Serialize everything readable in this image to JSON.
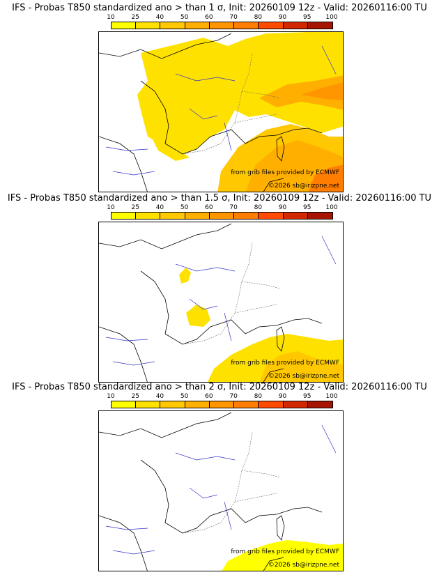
{
  "legend": {
    "ticks": [
      "10",
      "25",
      "40",
      "50",
      "60",
      "70",
      "80",
      "90",
      "95",
      "100"
    ],
    "colors": [
      "#ffff00",
      "#ffe100",
      "#ffc800",
      "#ffaf00",
      "#ff9600",
      "#ff7d00",
      "#ff4b00",
      "#d22800",
      "#a51400",
      "#640000"
    ]
  },
  "panels": [
    {
      "title": "IFS - Probas T850  standardized ano > than 1 σ, Init: 20260109 12z - Valid: 20260116:00 TU",
      "credit_source": "from grib files provided by ECMWF",
      "credit_copyright": "©2026 sb@irizpne.net",
      "coverage_levels": [
        40,
        60,
        80
      ]
    },
    {
      "title": "IFS - Probas T850  standardized ano > than 1.5 σ, Init: 20260109 12z - Valid: 20260116:00 TU",
      "credit_source": "from grib files provided by ECMWF",
      "credit_copyright": "©2026 sb@irizpne.net",
      "coverage_levels": [
        10,
        40
      ]
    },
    {
      "title": "IFS - Probas T850  standardized ano > than 2 σ, Init: 20260109 12z - Valid: 20260116:00 TU",
      "credit_source": "from grib files provided by ECMWF",
      "credit_copyright": "©2026 sb@irizpne.net",
      "coverage_levels": [
        10
      ]
    }
  ]
}
